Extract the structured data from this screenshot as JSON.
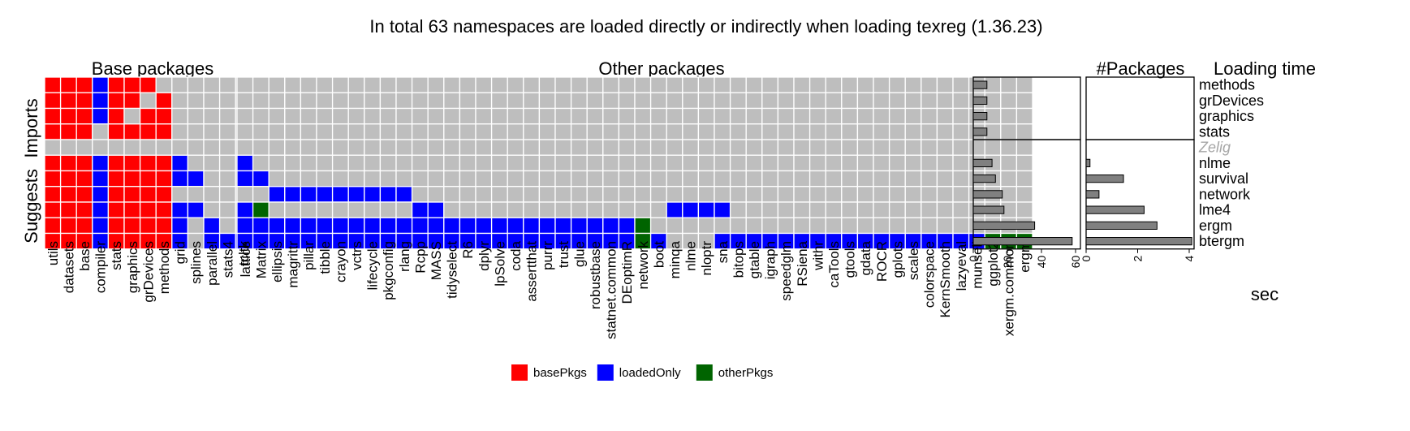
{
  "chart_data": {
    "type": "heatmap",
    "title": "In total 63 namespaces are loaded directly or indirectly when loading texreg (1.36.23)",
    "panels": {
      "base_title": "Base packages",
      "other_title": "Other packages",
      "count_title": "#Packages",
      "time_title": "Loading time"
    },
    "row_groups": [
      "Imports",
      "Suggests"
    ],
    "colors": {
      "basePkgs": "#ff0000",
      "loadedOnly": "#0000ff",
      "otherPkgs": "#006400",
      "none": "#bebebe",
      "bar": "#808080"
    },
    "legend": {
      "position": "bottom",
      "items": [
        {
          "key": "basePkgs",
          "label": "basePkgs"
        },
        {
          "key": "loadedOnly",
          "label": "loadedOnly"
        },
        {
          "key": "otherPkgs",
          "label": "otherPkgs"
        }
      ]
    },
    "base_packages": [
      "utils",
      "datasets",
      "base",
      "compiler",
      "stats",
      "graphics",
      "grDevices",
      "methods",
      "grid",
      "splines",
      "parallel",
      "stats4",
      "tcltk"
    ],
    "other_packages": [
      "lattice",
      "Matrix",
      "ellipsis",
      "magrittr",
      "pillar",
      "tibble",
      "crayon",
      "vctrs",
      "lifecycle",
      "pkgconfig",
      "rlang",
      "Rcpp",
      "MASS",
      "tidyselect",
      "R6",
      "dplyr",
      "lpSolve",
      "coda",
      "assertthat",
      "purrr",
      "trust",
      "glue",
      "robustbase",
      "statnet.common",
      "DEoptimR",
      "network",
      "boot",
      "minqa",
      "nlme",
      "nloptr",
      "sna",
      "bitops",
      "gtable",
      "igraph",
      "speedglm",
      "RSiena",
      "withr",
      "caTools",
      "gtools",
      "gdata",
      "ROCR",
      "gplots",
      "scales",
      "colorspace",
      "KernSmooth",
      "lazyeval",
      "munsell",
      "ggplot2",
      "xergm.common",
      "ergm"
    ],
    "imports": {
      "rows": [
        "methods",
        "grDevices",
        "graphics",
        "stats"
      ],
      "base": [
        "RRRBRRRN",
        "RRRBRRNR",
        "RRRBRNRR",
        "RRRNRRRR"
      ],
      "other": [
        "",
        "",
        "",
        ""
      ]
    },
    "suggests": {
      "rows": [
        "Zelig",
        "nlme",
        "survival",
        "network",
        "lme4",
        "ergm",
        "btergm"
      ],
      "row_muted": [
        true,
        false,
        false,
        false,
        false,
        false,
        false
      ],
      "base": [
        "",
        "RRRBRRRRB",
        "RRRBRRRRBB",
        "RRRBRRRR",
        "RRRBRRRRBB",
        "RRRBRRRRBNB",
        "RRRBRRRRBNBBB"
      ],
      "other": [
        "",
        "B",
        "BB",
        "NNBBBBBBBBB",
        "BGNNNNNNNNNBBNNNNNNNNNNNNNNBBBB",
        "BBBBBBBBBBBBBBBBBBBBBBBBBG",
        "BBBBBBBBBBBBBBBBBBBBBBBBBGBNNNBBBBBBBBBBBBBBBBBGGG"
      ]
    },
    "count_panel": {
      "xlim": [
        0,
        60
      ],
      "ticks": [
        0,
        20,
        40,
        60
      ],
      "imports_values": [
        8,
        8,
        8,
        8
      ],
      "suggests_values": [
        null,
        11,
        13,
        17,
        18,
        36,
        58
      ]
    },
    "time_panel": {
      "xlabel": "sec",
      "xlim": [
        0,
        4
      ],
      "ticks": [
        0,
        2,
        4
      ],
      "imports_values": [
        0,
        0,
        0,
        0
      ],
      "suggests_values": [
        null,
        0.15,
        1.45,
        0.5,
        2.25,
        2.75,
        4.1
      ]
    }
  }
}
